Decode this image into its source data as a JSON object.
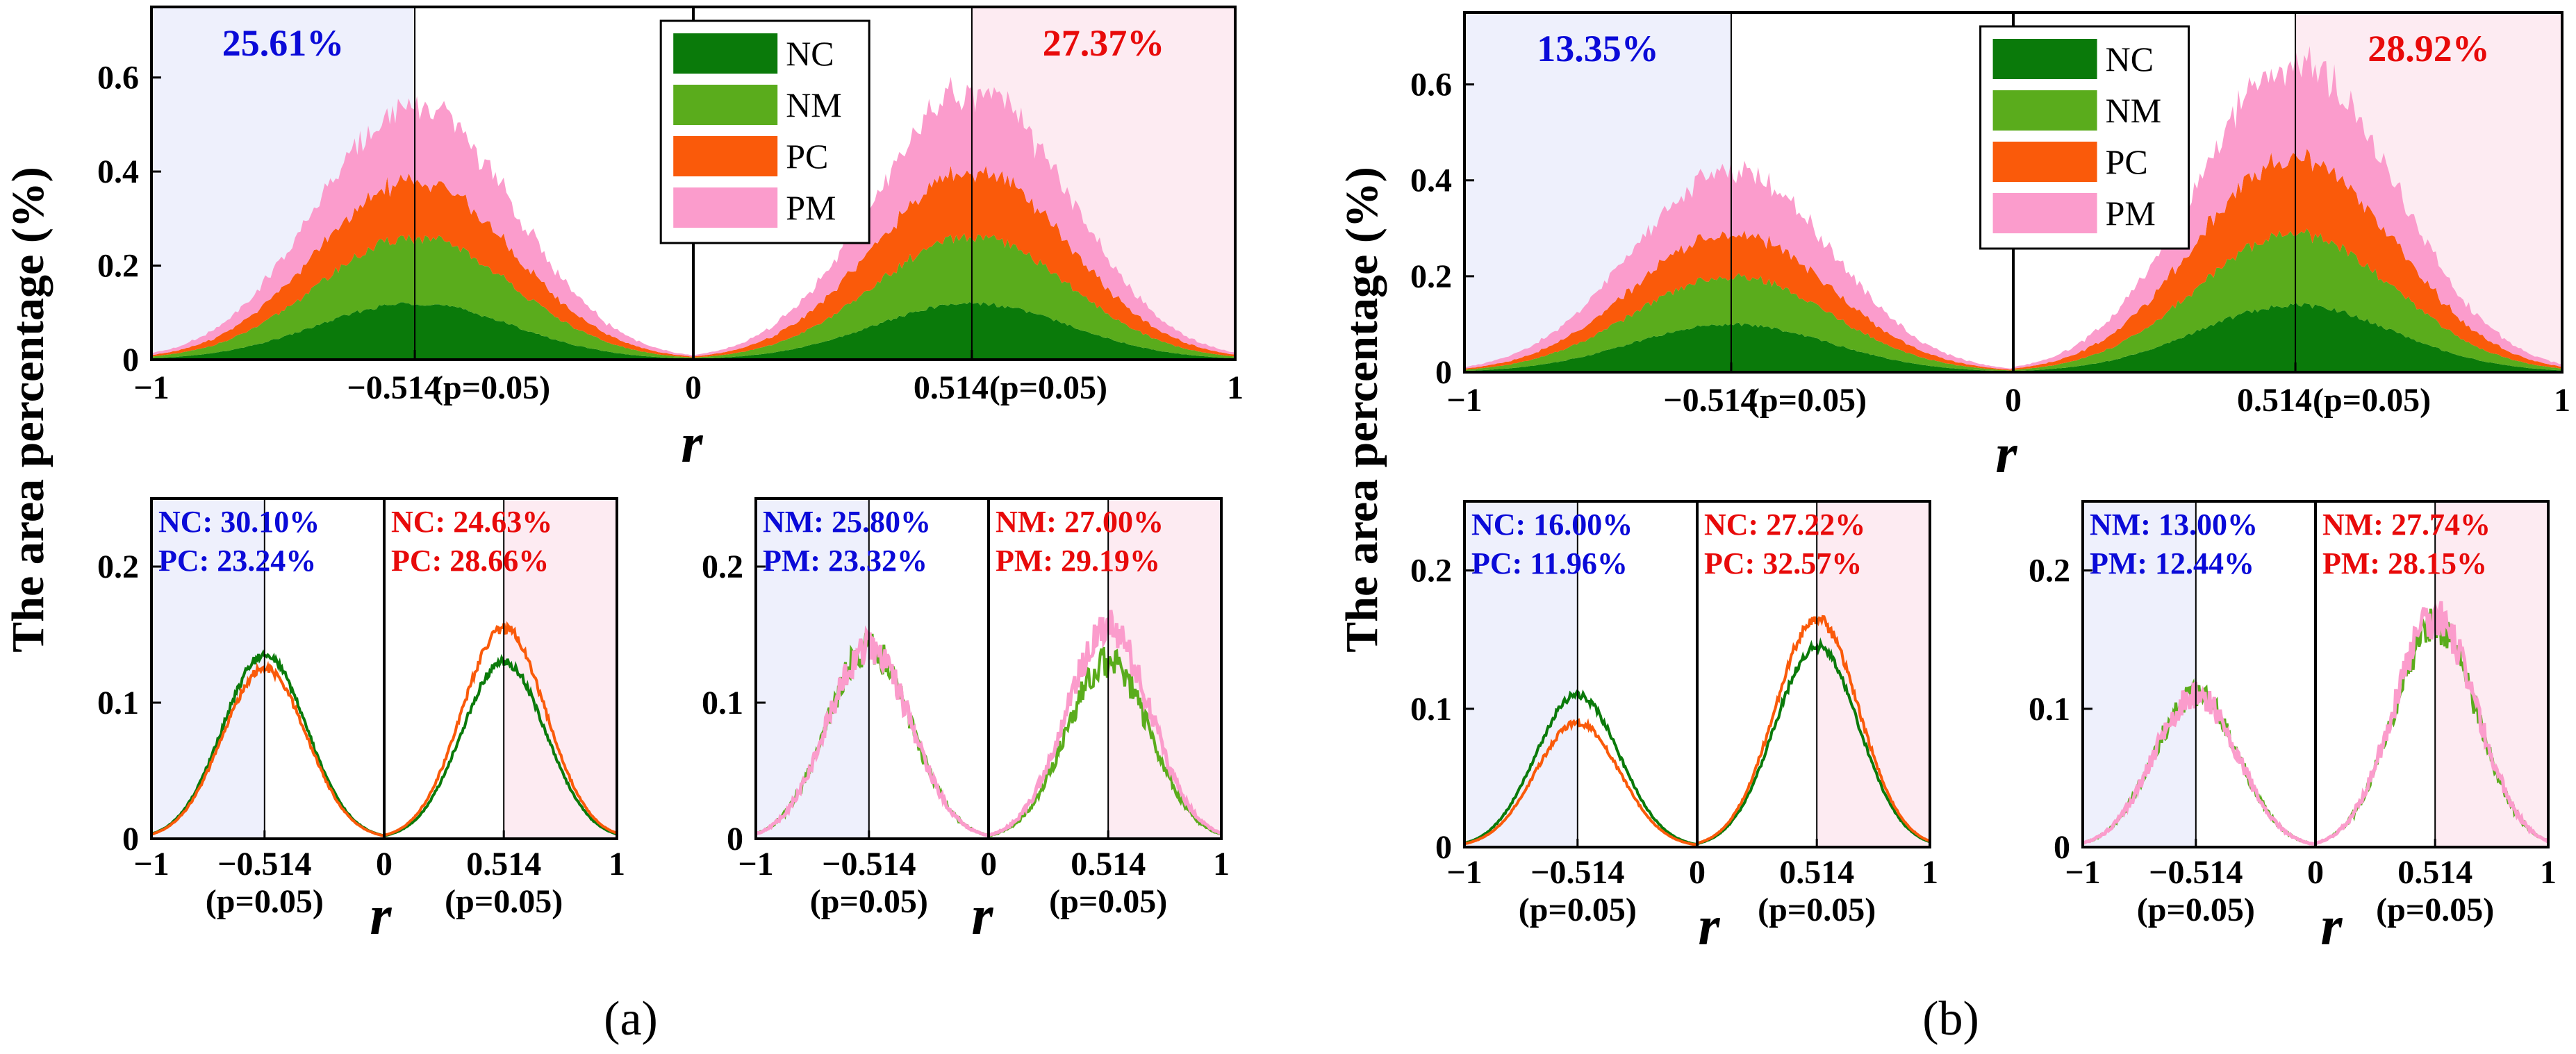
{
  "figure": {
    "ylabel": "The area percentage (%)",
    "xlabel": "r",
    "colors": {
      "NC": "#0a7a0a",
      "NM": "#5aac1c",
      "PC": "#fa5a0a",
      "PM": "#fb9ccc",
      "neg_text": "#0a0ad8",
      "pos_text": "#e80a0a",
      "neg_bg": "#eef0fc",
      "pos_bg": "#fdebf2"
    }
  },
  "chart_data": [
    {
      "id": "a-top",
      "type": "area",
      "stacked": true,
      "x_range": [
        -1,
        1
      ],
      "ylim": [
        0,
        0.75
      ],
      "x_ticks": [
        "−1",
        "−0.514",
        "(p=0.05)",
        "0",
        "0.514",
        "(p=0.05)",
        "1"
      ],
      "y_ticks": [
        "0",
        "0.2",
        "0.4",
        "0.6"
      ],
      "threshold": 0.514,
      "legend": [
        "NC",
        "NM",
        "PC",
        "PM"
      ],
      "neg_percent": "25.61%",
      "pos_percent": "27.37%",
      "series": [
        {
          "name": "NC",
          "neg_peak": 0.12,
          "pos_peak": 0.12
        },
        {
          "name": "NM",
          "neg_peak": 0.14,
          "pos_peak": 0.14
        },
        {
          "name": "PC",
          "neg_peak": 0.12,
          "pos_peak": 0.14
        },
        {
          "name": "PM",
          "neg_peak": 0.16,
          "pos_peak": 0.17
        }
      ]
    },
    {
      "id": "a-bottom-left",
      "type": "line",
      "x_range": [
        -1,
        1
      ],
      "ylim": [
        0,
        0.25
      ],
      "x_ticks": [
        "−1",
        "−0.514",
        "0",
        "0.514",
        "1"
      ],
      "x_ticks_sub": [
        "(p=0.05)",
        "(p=0.05)"
      ],
      "y_ticks": [
        "0",
        "0.1",
        "0.2"
      ],
      "neg_lines": [
        "NC: 30.10%",
        "PC: 23.24%"
      ],
      "pos_lines": [
        "NC: 24.63%",
        "PC: 28.66%"
      ],
      "series": [
        {
          "name": "NC",
          "neg_peak": 0.135,
          "pos_peak": 0.13
        },
        {
          "name": "PC",
          "neg_peak": 0.125,
          "pos_peak": 0.155
        }
      ]
    },
    {
      "id": "a-bottom-right",
      "type": "line",
      "x_range": [
        -1,
        1
      ],
      "ylim": [
        0,
        0.25
      ],
      "x_ticks": [
        "−1",
        "−0.514",
        "0",
        "0.514",
        "1"
      ],
      "x_ticks_sub": [
        "(p=0.05)",
        "(p=0.05)"
      ],
      "y_ticks": [
        "0",
        "0.1",
        "0.2"
      ],
      "neg_lines": [
        "NM: 25.80%",
        "PM: 23.32%"
      ],
      "pos_lines": [
        "NM: 27.00%",
        "PM: 29.19%"
      ],
      "series": [
        {
          "name": "NM",
          "neg_peak": 0.14,
          "pos_peak": 0.13
        },
        {
          "name": "PM",
          "neg_peak": 0.14,
          "pos_peak": 0.155
        }
      ]
    },
    {
      "id": "b-top",
      "type": "area",
      "stacked": true,
      "x_range": [
        -1,
        1
      ],
      "ylim": [
        0,
        0.75
      ],
      "x_ticks": [
        "−1",
        "−0.514",
        "(p=0.05)",
        "0",
        "0.514",
        "(p=0.05)",
        "1"
      ],
      "y_ticks": [
        "0",
        "0.2",
        "0.4",
        "0.6"
      ],
      "threshold": 0.514,
      "legend": [
        "NC",
        "NM",
        "PC",
        "PM"
      ],
      "neg_percent": "13.35%",
      "pos_percent": "28.92%",
      "series": [
        {
          "name": "NC",
          "neg_peak": 0.1,
          "pos_peak": 0.14
        },
        {
          "name": "NM",
          "neg_peak": 0.1,
          "pos_peak": 0.15
        },
        {
          "name": "PC",
          "neg_peak": 0.09,
          "pos_peak": 0.16
        },
        {
          "name": "PM",
          "neg_peak": 0.13,
          "pos_peak": 0.2
        }
      ]
    },
    {
      "id": "b-bottom-left",
      "type": "line",
      "x_range": [
        -1,
        1
      ],
      "ylim": [
        0,
        0.25
      ],
      "x_ticks": [
        "−1",
        "−0.514",
        "0",
        "0.514",
        "1"
      ],
      "x_ticks_sub": [
        "(p=0.05)",
        "(p=0.05)"
      ],
      "y_ticks": [
        "0",
        "0.1",
        "0.2"
      ],
      "neg_lines": [
        "NC: 16.00%",
        "PC: 11.96%"
      ],
      "pos_lines": [
        "NC: 27.22%",
        "PC: 32.57%"
      ],
      "series": [
        {
          "name": "NC",
          "neg_peak": 0.11,
          "pos_peak": 0.145
        },
        {
          "name": "PC",
          "neg_peak": 0.09,
          "pos_peak": 0.165
        }
      ]
    },
    {
      "id": "b-bottom-right",
      "type": "line",
      "x_range": [
        -1,
        1
      ],
      "ylim": [
        0,
        0.25
      ],
      "x_ticks": [
        "−1",
        "−0.514",
        "0",
        "0.514",
        "1"
      ],
      "x_ticks_sub": [
        "(p=0.05)",
        "(p=0.05)"
      ],
      "y_ticks": [
        "0",
        "0.1",
        "0.2"
      ],
      "neg_lines": [
        "NM: 13.00%",
        "PM: 12.44%"
      ],
      "pos_lines": [
        "NM: 27.74%",
        "PM: 28.15%"
      ],
      "series": [
        {
          "name": "NM",
          "neg_peak": 0.11,
          "pos_peak": 0.16
        },
        {
          "name": "PM",
          "neg_peak": 0.11,
          "pos_peak": 0.165
        }
      ]
    }
  ],
  "panel_labels": [
    "(a)",
    "(b)"
  ]
}
